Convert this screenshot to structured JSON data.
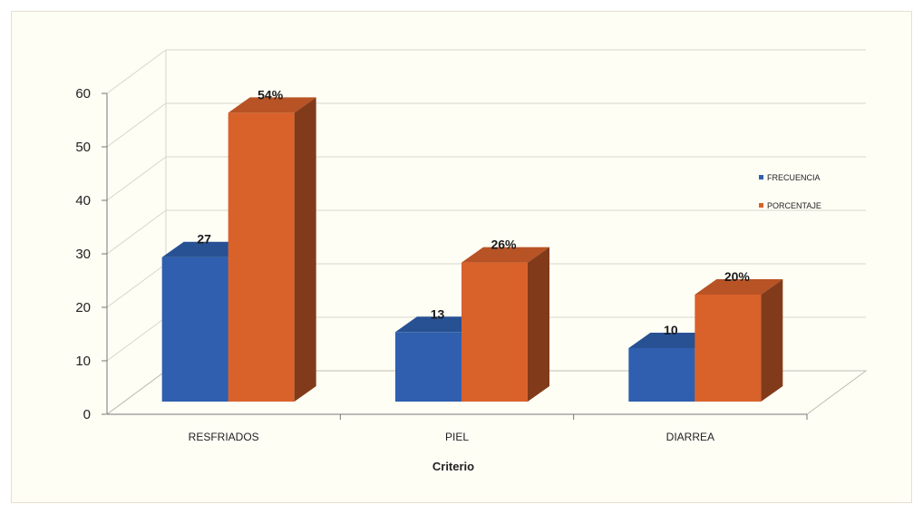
{
  "colors": {
    "frecuencia": "#2f5fae",
    "porcentaje": "#d9622b",
    "background": "#fffef5",
    "grid": "#d6d6cc"
  },
  "chart_data": {
    "type": "bar",
    "style": "3d-clustered-column",
    "categories": [
      "RESFRIADOS",
      "PIEL",
      "DIARREA"
    ],
    "series": [
      {
        "name": "FRECUENCIA",
        "values": [
          27,
          13,
          10
        ],
        "labels": [
          "27",
          "13",
          "10"
        ]
      },
      {
        "name": "PORCENTAJE",
        "values": [
          54,
          26,
          20
        ],
        "labels": [
          "54%",
          "26%",
          "20%"
        ]
      }
    ],
    "title": "",
    "xlabel": "Criterio",
    "ylabel": "",
    "ylim": [
      0,
      60
    ],
    "yticks": [
      "0",
      "10",
      "20",
      "30",
      "40",
      "50",
      "60"
    ],
    "grid": true,
    "legend_position": "right"
  }
}
